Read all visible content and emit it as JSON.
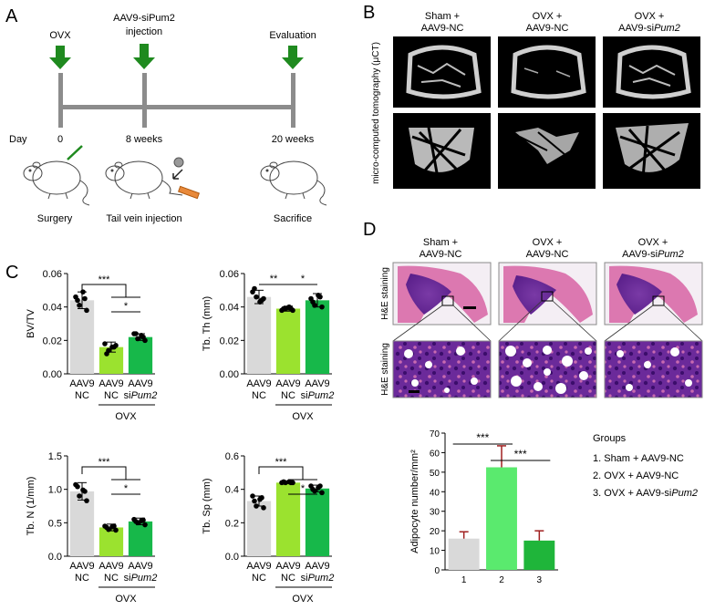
{
  "panels": {
    "a": "A",
    "b": "B",
    "c": "C",
    "d": "D"
  },
  "timeline": {
    "events": [
      "OVX",
      "AAV9-siPum2",
      "injection",
      "Evaluation"
    ],
    "day_label": "Day",
    "days": [
      "0",
      "8 weeks",
      "20 weeks"
    ],
    "procedures": [
      "Surgery",
      "Tail vein injection",
      "Sacrifice"
    ],
    "arrow_color": "#1f8a1f"
  },
  "micro_ct": {
    "side_label": "micro-computed tomography (μCT)",
    "group_headers": [
      {
        "line1": "Sham +",
        "line2": "AAV9-NC"
      },
      {
        "line1": "OVX +",
        "line2": "AAV9-NC"
      },
      {
        "line1": "OVX +",
        "line2a": "AAV9-si",
        "line2b": "Pum2"
      }
    ]
  },
  "histology": {
    "row_label": "H&E staining",
    "group_headers": [
      {
        "line1": "Sham +",
        "line2": "AAV9-NC"
      },
      {
        "line1": "OVX +",
        "line2": "AAV9-NC"
      },
      {
        "line1": "OVX +",
        "line2a": "AAV9-si",
        "line2b": "Pum2"
      }
    ]
  },
  "groups_legend": {
    "title": "Groups",
    "items": [
      "1. Sham + AAV9-NC",
      "2. OVX + AAV9-NC",
      {
        "prefix": "3. OVX + AAV9-si",
        "italic": "Pum2"
      }
    ]
  },
  "shared_x": {
    "line1": [
      "AAV9",
      "AAV9",
      "AAV9"
    ],
    "line2": [
      "NC",
      "NC",
      "si"
    ],
    "line2_italic": [
      "",
      "",
      "Pum2"
    ],
    "ovx_label": "OVX"
  },
  "colors": {
    "sham": "#d9d9d9",
    "ovx_nc": "#9be22f",
    "ovx_si": "#17b84a",
    "adipo_1": "#d9d9d9",
    "adipo_2": "#5aea6e",
    "adipo_3": "#1fb53a",
    "error": "#a02020"
  },
  "chart_data": [
    {
      "id": "bvtv",
      "type": "bar",
      "ylabel": "BV/TV",
      "ylim": [
        0,
        0.06
      ],
      "yticks": [
        "0.00",
        "0.02",
        "0.04",
        "0.06"
      ],
      "categories": [
        "AAV9 NC",
        "AAV9 NC (OVX)",
        "AAV9 siPum2 (OVX)"
      ],
      "values": [
        0.044,
        0.016,
        0.022
      ],
      "errors": [
        0.005,
        0.003,
        0.002
      ],
      "points": [
        [
          0.046,
          0.041,
          0.049,
          0.038,
          0.044,
          0.045
        ],
        [
          0.018,
          0.014,
          0.016,
          0.017,
          0.012,
          0.016
        ],
        [
          0.024,
          0.021,
          0.023,
          0.02,
          0.024,
          0.022
        ]
      ],
      "sig": [
        {
          "label": "***",
          "kind": "bracket",
          "from": 0,
          "to": [
            1,
            2
          ]
        },
        {
          "label": "*",
          "kind": "line",
          "from": 1,
          "to": 2
        }
      ]
    },
    {
      "id": "tbth",
      "type": "bar",
      "ylabel": "Tb. Th (mm)",
      "ylim": [
        0,
        0.06
      ],
      "yticks": [
        "0.00",
        "0.02",
        "0.04",
        "0.06"
      ],
      "categories": [
        "AAV9 NC",
        "AAV9 NC (OVX)",
        "AAV9 siPum2 (OVX)"
      ],
      "values": [
        0.046,
        0.039,
        0.044
      ],
      "errors": [
        0.004,
        0.0015,
        0.004
      ],
      "points": [
        [
          0.049,
          0.046,
          0.043,
          0.045,
          0.051,
          0.044
        ],
        [
          0.038,
          0.039,
          0.04,
          0.038,
          0.039,
          0.039
        ],
        [
          0.045,
          0.041,
          0.047,
          0.04,
          0.043,
          0.046
        ]
      ],
      "sig": [
        {
          "label": "**",
          "kind": "line",
          "from": 0,
          "to": 1
        },
        {
          "label": "*",
          "kind": "line",
          "from": 1,
          "to": 2
        }
      ]
    },
    {
      "id": "tbn",
      "type": "bar",
      "ylabel": "Tb. N (1/mm)",
      "ylim": [
        0,
        1.5
      ],
      "yticks": [
        "0.0",
        "0.5",
        "1.0",
        "1.5"
      ],
      "categories": [
        "AAV9 NC",
        "AAV9 NC (OVX)",
        "AAV9 siPum2 (OVX)"
      ],
      "values": [
        0.97,
        0.43,
        0.52
      ],
      "errors": [
        0.13,
        0.05,
        0.05
      ],
      "points": [
        [
          1.07,
          0.9,
          0.99,
          0.83,
          1.04,
          0.97
        ],
        [
          0.45,
          0.4,
          0.44,
          0.39,
          0.43,
          0.45
        ],
        [
          0.55,
          0.5,
          0.53,
          0.47,
          0.52,
          0.54
        ]
      ],
      "sig": [
        {
          "label": "***",
          "kind": "bracket",
          "from": 0,
          "to": [
            1,
            2
          ]
        },
        {
          "label": "*",
          "kind": "line",
          "from": 1,
          "to": 2
        }
      ]
    },
    {
      "id": "tbsp",
      "type": "bar",
      "ylabel": "Tb. Sp (mm)",
      "ylim": [
        0,
        0.6
      ],
      "yticks": [
        "0.0",
        "0.2",
        "0.4",
        "0.6"
      ],
      "categories": [
        "AAV9 NC",
        "AAV9 NC (OVX)",
        "AAV9 siPum2 (OVX)"
      ],
      "values": [
        0.33,
        0.44,
        0.405
      ],
      "errors": [
        0.03,
        0.005,
        0.02
      ],
      "points": [
        [
          0.36,
          0.3,
          0.34,
          0.29,
          0.33,
          0.35
        ],
        [
          0.44,
          0.44,
          0.445,
          0.44,
          0.445,
          0.44
        ],
        [
          0.42,
          0.39,
          0.41,
          0.38,
          0.4,
          0.42
        ]
      ],
      "sig": [
        {
          "label": "***",
          "kind": "bracket-top",
          "from": 0,
          "to": [
            1,
            2
          ]
        },
        {
          "label": "*",
          "kind": "line",
          "from": 1,
          "to": 2
        }
      ]
    },
    {
      "id": "adipocyte",
      "type": "bar",
      "ylabel": "Adipocyte number/mm²",
      "ylim": [
        0,
        70
      ],
      "yticks": [
        "0",
        "10",
        "20",
        "30",
        "40",
        "50",
        "60",
        "70"
      ],
      "categories": [
        "1",
        "2",
        "3"
      ],
      "values": [
        16,
        52.5,
        15
      ],
      "errors": [
        3.5,
        11,
        5
      ],
      "sig": [
        {
          "label": "***",
          "kind": "line",
          "from": 0,
          "to": 1
        },
        {
          "label": "***",
          "kind": "line",
          "from": 1,
          "to": 2
        }
      ]
    }
  ]
}
